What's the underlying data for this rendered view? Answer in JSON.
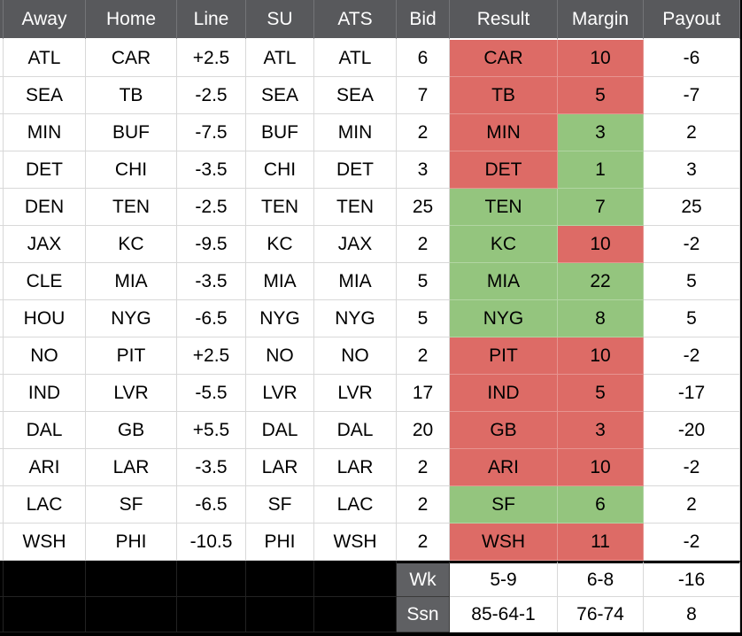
{
  "app": {
    "description": "NFL picks tracking spreadsheet table"
  },
  "colors": {
    "header_bg": "#58595C",
    "header_text": "#FFFFFF",
    "header_sep": "#737477",
    "label_bg": "#5F6063",
    "win_green": "#94C57E",
    "loss_red": "#DD6B66",
    "gridline": "#D8D8D8",
    "black_fill": "#000000",
    "black_grid": "#222222",
    "text": "#000000"
  },
  "table": {
    "columns": [
      {
        "key": "away",
        "label": "Away"
      },
      {
        "key": "home",
        "label": "Home"
      },
      {
        "key": "line",
        "label": "Line"
      },
      {
        "key": "su",
        "label": "SU"
      },
      {
        "key": "ats",
        "label": "ATS"
      },
      {
        "key": "bid",
        "label": "Bid"
      },
      {
        "key": "result",
        "label": "Result"
      },
      {
        "key": "margin",
        "label": "Margin"
      },
      {
        "key": "payout",
        "label": "Payout"
      }
    ],
    "rows": [
      {
        "away": "ATL",
        "home": "CAR",
        "line": "+2.5",
        "su": "ATL",
        "ats": "ATL",
        "bid": "6",
        "result": "CAR",
        "result_color": "red",
        "margin": "10",
        "margin_color": "red",
        "payout": "-6"
      },
      {
        "away": "SEA",
        "home": "TB",
        "line": "-2.5",
        "su": "SEA",
        "ats": "SEA",
        "bid": "7",
        "result": "TB",
        "result_color": "red",
        "margin": "5",
        "margin_color": "red",
        "payout": "-7"
      },
      {
        "away": "MIN",
        "home": "BUF",
        "line": "-7.5",
        "su": "BUF",
        "ats": "MIN",
        "bid": "2",
        "result": "MIN",
        "result_color": "red",
        "margin": "3",
        "margin_color": "green",
        "payout": "2"
      },
      {
        "away": "DET",
        "home": "CHI",
        "line": "-3.5",
        "su": "CHI",
        "ats": "DET",
        "bid": "3",
        "result": "DET",
        "result_color": "red",
        "margin": "1",
        "margin_color": "green",
        "payout": "3"
      },
      {
        "away": "DEN",
        "home": "TEN",
        "line": "-2.5",
        "su": "TEN",
        "ats": "TEN",
        "bid": "25",
        "result": "TEN",
        "result_color": "green",
        "margin": "7",
        "margin_color": "green",
        "payout": "25"
      },
      {
        "away": "JAX",
        "home": "KC",
        "line": "-9.5",
        "su": "KC",
        "ats": "JAX",
        "bid": "2",
        "result": "KC",
        "result_color": "green",
        "margin": "10",
        "margin_color": "red",
        "payout": "-2"
      },
      {
        "away": "CLE",
        "home": "MIA",
        "line": "-3.5",
        "su": "MIA",
        "ats": "MIA",
        "bid": "5",
        "result": "MIA",
        "result_color": "green",
        "margin": "22",
        "margin_color": "green",
        "payout": "5"
      },
      {
        "away": "HOU",
        "home": "NYG",
        "line": "-6.5",
        "su": "NYG",
        "ats": "NYG",
        "bid": "5",
        "result": "NYG",
        "result_color": "green",
        "margin": "8",
        "margin_color": "green",
        "payout": "5"
      },
      {
        "away": "NO",
        "home": "PIT",
        "line": "+2.5",
        "su": "NO",
        "ats": "NO",
        "bid": "2",
        "result": "PIT",
        "result_color": "red",
        "margin": "10",
        "margin_color": "red",
        "payout": "-2"
      },
      {
        "away": "IND",
        "home": "LVR",
        "line": "-5.5",
        "su": "LVR",
        "ats": "LVR",
        "bid": "17",
        "result": "IND",
        "result_color": "red",
        "margin": "5",
        "margin_color": "red",
        "payout": "-17"
      },
      {
        "away": "DAL",
        "home": "GB",
        "line": "+5.5",
        "su": "DAL",
        "ats": "DAL",
        "bid": "20",
        "result": "GB",
        "result_color": "red",
        "margin": "3",
        "margin_color": "red",
        "payout": "-20"
      },
      {
        "away": "ARI",
        "home": "LAR",
        "line": "-3.5",
        "su": "LAR",
        "ats": "LAR",
        "bid": "2",
        "result": "ARI",
        "result_color": "red",
        "margin": "10",
        "margin_color": "red",
        "payout": "-2"
      },
      {
        "away": "LAC",
        "home": "SF",
        "line": "-6.5",
        "su": "SF",
        "ats": "LAC",
        "bid": "2",
        "result": "SF",
        "result_color": "green",
        "margin": "6",
        "margin_color": "green",
        "payout": "2"
      },
      {
        "away": "WSH",
        "home": "PHI",
        "line": "-10.5",
        "su": "PHI",
        "ats": "WSH",
        "bid": "2",
        "result": "WSH",
        "result_color": "red",
        "margin": "11",
        "margin_color": "red",
        "payout": "-2"
      }
    ],
    "footer": [
      {
        "label": "Wk",
        "result": "5-9",
        "margin": "6-8",
        "payout": "-16"
      },
      {
        "label": "Ssn",
        "result": "85-64-1",
        "margin": "76-74",
        "payout": "8"
      }
    ]
  }
}
